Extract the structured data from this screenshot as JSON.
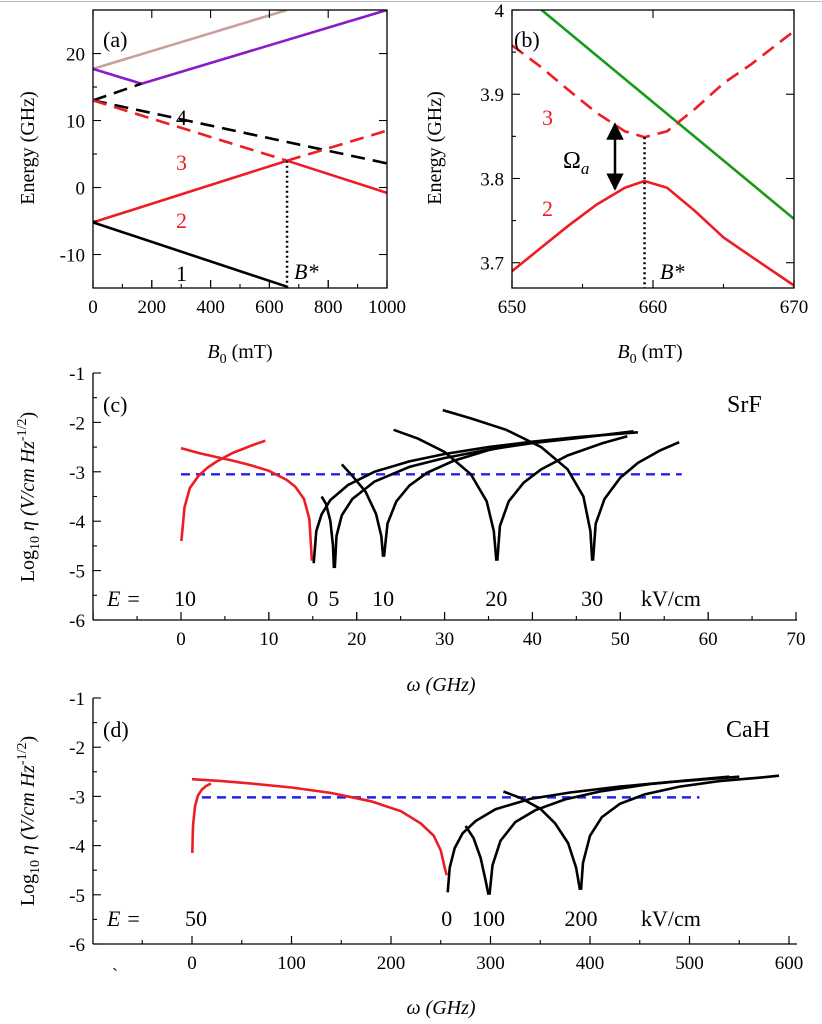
{
  "colors": {
    "black": "#000000",
    "red": "#ee1c24",
    "pink": "#c8a09e",
    "purple": "#8b1bc8",
    "green": "#199a19",
    "blue": "#2222ee"
  },
  "chart_data": [
    {
      "id": "a",
      "type": "line",
      "panel_label": "(a)",
      "xlabel": "B",
      "xlabel_sub": "0",
      "xlabel_unit": " (mT)",
      "ylabel": "Energy (GHz)",
      "xlim": [
        0,
        1000
      ],
      "ylim": [
        -15,
        26.5
      ],
      "xticks": [
        0,
        200,
        400,
        600,
        800,
        1000
      ],
      "yticks": [
        -10,
        0,
        10,
        20
      ],
      "annotations": {
        "B_star": "B*",
        "curve_numbers": [
          "1",
          "2",
          "3",
          "4"
        ],
        "B_star_x": 660
      },
      "series": [
        {
          "color": "pink",
          "dash": false,
          "x": [
            0,
            660
          ],
          "y": [
            17.7,
            26.5
          ]
        },
        {
          "color": "purple",
          "dash": false,
          "x": [
            0,
            165
          ],
          "y": [
            17.7,
            15.5
          ]
        },
        {
          "color": "purple",
          "dash": false,
          "x": [
            165,
            1000
          ],
          "y": [
            15.5,
            26.5
          ]
        },
        {
          "color": "black",
          "dash": true,
          "x": [
            0,
            1000
          ],
          "y": [
            13,
            3.6
          ]
        },
        {
          "color": "black",
          "dash": true,
          "x": [
            0,
            165
          ],
          "y": [
            13,
            15.5
          ]
        },
        {
          "color": "red",
          "dash": true,
          "x": [
            0,
            660
          ],
          "y": [
            13,
            4
          ]
        },
        {
          "color": "red",
          "dash": true,
          "x": [
            660,
            1000
          ],
          "y": [
            4,
            8.5
          ]
        },
        {
          "color": "red",
          "dash": false,
          "x": [
            0,
            660
          ],
          "y": [
            -5.2,
            4
          ]
        },
        {
          "color": "red",
          "dash": false,
          "x": [
            660,
            1000
          ],
          "y": [
            4,
            -0.8
          ]
        },
        {
          "color": "black",
          "dash": false,
          "x": [
            0,
            660
          ],
          "y": [
            -5.2,
            -14.8
          ]
        }
      ]
    },
    {
      "id": "b",
      "type": "line",
      "panel_label": "(b)",
      "xlabel": "B",
      "xlabel_sub": "0",
      "xlabel_unit": " (mT)",
      "ylabel": "Energy (GHz)",
      "xlim": [
        650,
        670
      ],
      "ylim": [
        3.67,
        4.0
      ],
      "xticks": [
        650,
        660,
        670
      ],
      "yticks": [
        3.7,
        3.8,
        3.9,
        4
      ],
      "ytick_labels": [
        "3.7",
        "3.8",
        "3.9",
        "4"
      ],
      "annotations": {
        "B_star": "B*",
        "omega": "Ω",
        "omega_sub": "a",
        "curve_numbers": [
          "3",
          "2"
        ],
        "B_star_x": 659.4
      },
      "series": [
        {
          "color": "green",
          "dash": false,
          "x": [
            652.1,
            670
          ],
          "y": [
            4.0,
            3.752
          ]
        },
        {
          "color": "red",
          "dash": true,
          "x": [
            650,
            652,
            654,
            656,
            658,
            659.4,
            661,
            663,
            665,
            667,
            670
          ],
          "y": [
            3.958,
            3.933,
            3.905,
            3.878,
            3.856,
            3.849,
            3.856,
            3.883,
            3.913,
            3.936,
            3.975
          ]
        },
        {
          "color": "red",
          "dash": false,
          "x": [
            650,
            652,
            654,
            656,
            658,
            659.4,
            661,
            663,
            665,
            667,
            670
          ],
          "y": [
            3.69,
            3.717,
            3.744,
            3.769,
            3.789,
            3.797,
            3.789,
            3.761,
            3.73,
            3.707,
            3.673
          ]
        }
      ]
    },
    {
      "id": "c",
      "type": "line",
      "panel_label": "(c)",
      "molecule": "SrF",
      "xlabel": "ω (GHz)",
      "ylabel": "Log",
      "ylabel_sub": "10",
      "ylabel_rest": " η (V/cm Hz",
      "ylabel_sup": "-1/2",
      "ylabel_end": ")",
      "xlim": [
        -10,
        70
      ],
      "ylim": [
        -6,
        -1
      ],
      "xticks": [
        0,
        10,
        20,
        30,
        40,
        50,
        60,
        70
      ],
      "yticks": [
        -6,
        -5,
        -4,
        -3,
        -2,
        -1
      ],
      "threshold": {
        "y": -3.05,
        "x": [
          0,
          57
        ]
      },
      "field_row": {
        "prefix": "E =",
        "values": [
          "10",
          "0",
          "5",
          "10",
          "20",
          "30"
        ],
        "unit": "kV/cm",
        "x": [
          0,
          15,
          17.4,
          23,
          35.9,
          46.8
        ]
      },
      "series": [
        {
          "color": "red",
          "field": "10",
          "left": {
            "x": [
              0.05,
              0.4,
              1,
              2,
              3,
              4,
              5,
              6,
              7,
              8,
              9.6
            ],
            "y": [
              -4.4,
              -3.72,
              -3.33,
              -3.08,
              -2.92,
              -2.8,
              -2.7,
              -2.61,
              -2.54,
              -2.47,
              -2.37
            ]
          },
          "right": {
            "x": [
              0,
              2,
              4,
              6,
              8,
              10,
              12,
              13,
              14,
              14.6,
              14.9
            ],
            "y": [
              -2.52,
              -2.62,
              -2.7,
              -2.78,
              -2.87,
              -2.98,
              -3.16,
              -3.3,
              -3.55,
              -3.95,
              -4.8
            ]
          }
        },
        {
          "color": "black",
          "field": "0",
          "right": {
            "x": [
              15.1,
              15.4,
              16,
              17,
              19,
              22,
              26,
              30,
              35,
              40,
              45,
              52
            ],
            "y": [
              -4.85,
              -4.2,
              -3.86,
              -3.57,
              -3.27,
              -3.0,
              -2.79,
              -2.64,
              -2.5,
              -2.39,
              -2.3,
              -2.2
            ]
          }
        },
        {
          "color": "black",
          "field": "5",
          "left": {
            "x": [
              16,
              16.5,
              17,
              17.3,
              17.4
            ],
            "y": [
              -3.5,
              -3.65,
              -4.0,
              -4.5,
              -4.95
            ]
          },
          "right": {
            "x": [
              17.5,
              17.7,
              18.3,
              19.5,
              22,
              26,
              30,
              35,
              40,
              45,
              51.5
            ],
            "y": [
              -4.95,
              -4.3,
              -3.88,
              -3.55,
              -3.2,
              -2.9,
              -2.72,
              -2.55,
              -2.42,
              -2.32,
              -2.18
            ]
          }
        },
        {
          "color": "black",
          "field": "10",
          "left": {
            "x": [
              18.3,
              19.5,
              21,
              22.2,
              22.8,
              23
            ],
            "y": [
              -2.85,
              -3.08,
              -3.4,
              -3.85,
              -4.3,
              -4.72
            ]
          },
          "right": {
            "x": [
              23.1,
              23.5,
              24.5,
              26,
              28,
              31,
              35,
              38.5
            ],
            "y": [
              -4.72,
              -4.05,
              -3.6,
              -3.28,
              -3.02,
              -2.78,
              -2.56,
              -2.44
            ]
          }
        },
        {
          "color": "black",
          "field": "20",
          "left": {
            "x": [
              24.2,
              27,
              30,
              33,
              34.8,
              35.6,
              35.9
            ],
            "y": [
              -2.15,
              -2.33,
              -2.6,
              -3.05,
              -3.6,
              -4.2,
              -4.8
            ]
          },
          "right": {
            "x": [
              36,
              36.3,
              37.3,
              39,
              41,
              44,
              48,
              50.8
            ],
            "y": [
              -4.8,
              -4.1,
              -3.6,
              -3.22,
              -2.95,
              -2.67,
              -2.42,
              -2.28
            ]
          }
        },
        {
          "color": "black",
          "field": "30",
          "left": {
            "x": [
              29.8,
              33,
              37,
              41,
              44,
              45.8,
              46.6,
              46.8
            ],
            "y": [
              -1.75,
              -1.92,
              -2.15,
              -2.5,
              -2.95,
              -3.5,
              -4.2,
              -4.8
            ]
          },
          "right": {
            "x": [
              46.9,
              47.2,
              48.2,
              50,
              52,
              54.5,
              56.7
            ],
            "y": [
              -4.8,
              -4.05,
              -3.55,
              -3.12,
              -2.82,
              -2.57,
              -2.4
            ]
          }
        }
      ]
    },
    {
      "id": "d",
      "type": "line",
      "panel_label": "(d)",
      "molecule": "CaH",
      "xlabel": "ω (GHz)",
      "ylabel": "Log",
      "ylabel_sub": "10",
      "ylabel_rest": " η (V/cm Hz",
      "ylabel_sup": "-1/2",
      "ylabel_end": ")",
      "xlim": [
        -100,
        600
      ],
      "ylim": [
        -6,
        -1
      ],
      "xticks": [
        0,
        100,
        200,
        300,
        400,
        500,
        600
      ],
      "yticks": [
        -6,
        -5,
        -4,
        -3,
        -2,
        -1
      ],
      "stray_mark": "`",
      "threshold": {
        "y": -3.02,
        "x": [
          10,
          510
        ]
      },
      "field_row": {
        "prefix": "E =",
        "values": [
          "50",
          "0",
          "100",
          "200"
        ],
        "unit": "kV/cm",
        "x": [
          0,
          256,
          298,
          391
        ]
      },
      "series": [
        {
          "color": "red",
          "field": "50",
          "left": {
            "x": [
              0.3,
              1,
              3,
              6,
              10,
              14,
              19
            ],
            "y": [
              -4.15,
              -3.6,
              -3.2,
              -2.98,
              -2.86,
              -2.79,
              -2.74
            ]
          },
          "right": {
            "x": [
              0,
              30,
              60,
              100,
              140,
              180,
              210,
              230,
              243,
              250,
              254,
              256
            ],
            "y": [
              -2.65,
              -2.69,
              -2.74,
              -2.82,
              -2.93,
              -3.1,
              -3.3,
              -3.55,
              -3.8,
              -4.1,
              -4.45,
              -4.6
            ]
          }
        },
        {
          "color": "black",
          "field": "0",
          "right": {
            "x": [
              257,
              259,
              264,
              272,
              285,
              305,
              340,
              380,
              430,
              480,
              550
            ],
            "y": [
              -4.95,
              -4.45,
              -4.05,
              -3.75,
              -3.5,
              -3.26,
              -3.05,
              -2.92,
              -2.8,
              -2.71,
              -2.6
            ]
          }
        },
        {
          "color": "black",
          "field": "100",
          "left": {
            "x": [
              275,
              283,
              290,
              295,
              298
            ],
            "y": [
              -3.6,
              -3.85,
              -4.25,
              -4.7,
              -5.0
            ]
          },
          "right": {
            "x": [
              299,
              302,
              310,
              325,
              345,
              375,
              410,
              460,
              500,
              540
            ],
            "y": [
              -5.0,
              -4.4,
              -3.9,
              -3.52,
              -3.28,
              -3.06,
              -2.9,
              -2.75,
              -2.67,
              -2.6
            ]
          }
        },
        {
          "color": "black",
          "field": "200",
          "left": {
            "x": [
              313,
              330,
              350,
              365,
              378,
              386,
              390
            ],
            "y": [
              -2.9,
              -3.03,
              -3.25,
              -3.55,
              -3.95,
              -4.45,
              -4.9
            ]
          },
          "right": {
            "x": [
              391,
              393,
              400,
              412,
              430,
              455,
              490,
              530,
              570,
              590
            ],
            "y": [
              -4.9,
              -4.35,
              -3.8,
              -3.42,
              -3.15,
              -2.96,
              -2.8,
              -2.69,
              -2.62,
              -2.58
            ]
          }
        }
      ]
    }
  ]
}
